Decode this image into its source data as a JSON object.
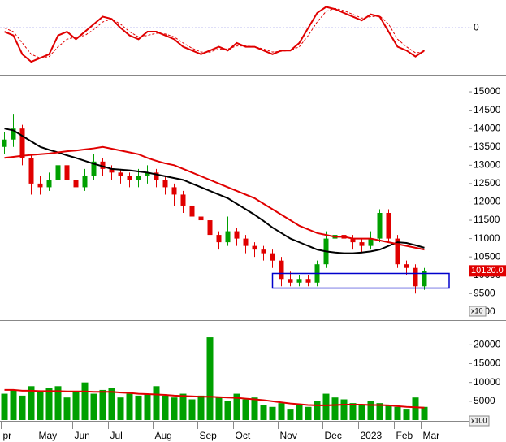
{
  "chart_data": [
    {
      "type": "line",
      "ylim": [
        -60,
        35
      ],
      "yticks": [
        0
      ],
      "zero_line_color": "#0000cc",
      "series": [
        {
          "color": "#e00000",
          "dashed": false,
          "values": [
            -5,
            -10,
            -35,
            -45,
            -40,
            -35,
            -10,
            -5,
            -15,
            -5,
            5,
            15,
            12,
            0,
            -10,
            -15,
            -5,
            -5,
            -10,
            -15,
            -25,
            -30,
            -35,
            -30,
            -25,
            -30,
            -20,
            -25,
            -25,
            -30,
            -35,
            -30,
            -30,
            -20,
            0,
            20,
            28,
            25,
            20,
            15,
            10,
            18,
            15,
            -5,
            -25,
            -30,
            -38,
            -30
          ]
        },
        {
          "color": "#e00000",
          "dashed": true,
          "values": [
            0,
            -5,
            -20,
            -35,
            -40,
            -38,
            -25,
            -15,
            -12,
            -10,
            -2,
            8,
            12,
            5,
            -5,
            -12,
            -10,
            -7,
            -8,
            -12,
            -20,
            -27,
            -32,
            -32,
            -28,
            -28,
            -24,
            -24,
            -25,
            -28,
            -32,
            -31,
            -30,
            -25,
            -10,
            8,
            22,
            26,
            23,
            18,
            13,
            15,
            16,
            5,
            -15,
            -25,
            -33,
            -32
          ]
        }
      ]
    },
    {
      "type": "candlestick",
      "ylim": [
        8820,
        15400
      ],
      "yticks": [
        9000,
        9500,
        10000,
        10500,
        11000,
        11500,
        12000,
        12500,
        13000,
        13500,
        14000,
        14500,
        15000
      ],
      "unit_label": "x10",
      "up_color": "#00a000",
      "down_color": "#e00000",
      "last_label": "10120.0",
      "open": [
        13500,
        13700,
        14000,
        13200,
        12500,
        12400,
        12600,
        13000,
        12600,
        12400,
        12700,
        13100,
        12900,
        12800,
        12700,
        12600,
        12700,
        12800,
        12600,
        12400,
        12200,
        11900,
        11600,
        11500,
        11100,
        10900,
        11200,
        11000,
        10800,
        10700,
        10600,
        10400,
        9900,
        9800,
        9900,
        9800,
        10300,
        11000,
        11100,
        11000,
        10900,
        10800,
        11000,
        11700,
        11000,
        10300,
        10200,
        9700
      ],
      "high": [
        13900,
        14400,
        14100,
        13300,
        12700,
        12800,
        13300,
        13100,
        12800,
        12900,
        13300,
        13200,
        13000,
        12900,
        12800,
        12900,
        13000,
        12900,
        12700,
        12500,
        12300,
        12000,
        11800,
        11600,
        11200,
        11600,
        11300,
        11100,
        10900,
        10800,
        10700,
        10500,
        10100,
        10000,
        10000,
        10400,
        11200,
        11300,
        11200,
        11100,
        11000,
        11200,
        11800,
        11800,
        11100,
        10400,
        10300,
        10200
      ],
      "low": [
        13300,
        13500,
        13000,
        12200,
        12200,
        12300,
        12500,
        12400,
        12200,
        12300,
        12600,
        12700,
        12600,
        12500,
        12400,
        12400,
        12500,
        12400,
        12200,
        11900,
        11700,
        11400,
        11300,
        10900,
        10700,
        10800,
        10800,
        10600,
        10500,
        10400,
        10200,
        9700,
        9700,
        9700,
        9700,
        9700,
        10200,
        10800,
        10800,
        10700,
        10600,
        10700,
        10900,
        10900,
        10200,
        10000,
        9500,
        9600
      ],
      "close": [
        13700,
        14000,
        13200,
        12500,
        12400,
        12600,
        13000,
        12600,
        12400,
        12700,
        13100,
        12900,
        12800,
        12700,
        12600,
        12700,
        12800,
        12600,
        12400,
        12200,
        11900,
        11600,
        11500,
        11100,
        10900,
        11200,
        11000,
        10800,
        10700,
        10600,
        10400,
        9900,
        9800,
        9900,
        9800,
        10300,
        11000,
        11100,
        11000,
        10900,
        10800,
        11000,
        11700,
        11000,
        10300,
        10200,
        9700,
        10120
      ],
      "series": [
        {
          "color": "#000000",
          "values": [
            14000,
            13950,
            13800,
            13650,
            13500,
            13420,
            13350,
            13270,
            13200,
            13120,
            13040,
            12970,
            12900,
            12880,
            12860,
            12830,
            12800,
            12750,
            12700,
            12650,
            12600,
            12500,
            12400,
            12300,
            12200,
            12100,
            11950,
            11800,
            11650,
            11480,
            11300,
            11150,
            11000,
            10900,
            10800,
            10700,
            10650,
            10620,
            10600,
            10600,
            10620,
            10650,
            10700,
            10800,
            10900,
            10880,
            10820,
            10750
          ]
        },
        {
          "color": "#e00000",
          "values": [
            13200,
            13230,
            13260,
            13280,
            13300,
            13320,
            13350,
            13380,
            13400,
            13430,
            13460,
            13500,
            13450,
            13400,
            13350,
            13300,
            13200,
            13120,
            13050,
            13000,
            12900,
            12800,
            12700,
            12600,
            12500,
            12400,
            12300,
            12200,
            12100,
            11950,
            11800,
            11650,
            11500,
            11350,
            11250,
            11150,
            11100,
            11050,
            11050,
            11000,
            11000,
            11000,
            10950,
            10900,
            10850,
            10800,
            10750,
            10700
          ]
        }
      ],
      "zone": {
        "low": 9650,
        "high": 10050,
        "start": 30,
        "color": "#0000cc"
      }
    },
    {
      "type": "bar",
      "ylim": [
        0,
        25900
      ],
      "yticks": [
        5000,
        10000,
        15000,
        20000
      ],
      "unit_label": "x100",
      "color": "#00a000",
      "categories": [
        "pr",
        null,
        null,
        null,
        "May",
        null,
        null,
        null,
        "Jun",
        null,
        null,
        null,
        "Jul",
        null,
        null,
        null,
        null,
        "Aug",
        null,
        null,
        null,
        null,
        "Sep",
        null,
        null,
        null,
        "Oct",
        null,
        null,
        null,
        null,
        "Nov",
        null,
        null,
        null,
        null,
        "Dec",
        null,
        null,
        null,
        "2023",
        null,
        null,
        null,
        "Feb",
        null,
        null,
        "Mar"
      ],
      "values": [
        7000,
        8000,
        6500,
        9000,
        7500,
        8500,
        9000,
        6000,
        7500,
        10000,
        7000,
        8000,
        8500,
        6000,
        7000,
        6500,
        7000,
        9000,
        6500,
        6000,
        7000,
        5500,
        6500,
        22000,
        6000,
        5000,
        7000,
        5500,
        6000,
        4000,
        3500,
        4500,
        3000,
        4000,
        3500,
        5000,
        7000,
        6000,
        5500,
        4500,
        4000,
        5000,
        4500,
        4000,
        3500,
        3000,
        6000,
        3500
      ],
      "series": [
        {
          "color": "#e00000",
          "values": [
            8000,
            8000,
            7800,
            7800,
            7700,
            7700,
            7700,
            7600,
            7600,
            7600,
            7500,
            7500,
            7500,
            7300,
            7200,
            7000,
            6900,
            6800,
            6700,
            6500,
            6400,
            6300,
            6200,
            6200,
            6100,
            6000,
            5900,
            5700,
            5500,
            5300,
            5000,
            4700,
            4400,
            4200,
            4000,
            3900,
            3900,
            4000,
            4100,
            4100,
            4100,
            4000,
            4000,
            3900,
            3700,
            3500,
            3400,
            3300
          ]
        }
      ]
    }
  ]
}
